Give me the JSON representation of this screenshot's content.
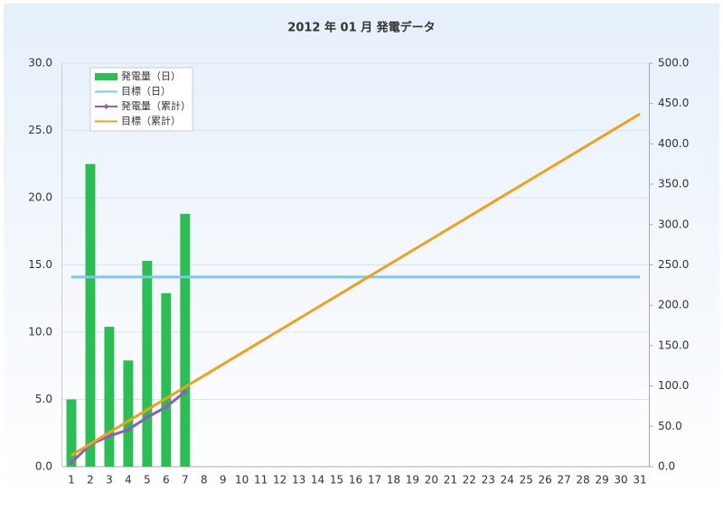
{
  "chart_data": {
    "type": "combo",
    "title": "2012 年 01 月 発電データ",
    "categories": [
      "1",
      "2",
      "3",
      "4",
      "5",
      "6",
      "7",
      "8",
      "9",
      "10",
      "11",
      "12",
      "13",
      "14",
      "15",
      "16",
      "17",
      "18",
      "19",
      "20",
      "21",
      "22",
      "23",
      "24",
      "25",
      "26",
      "27",
      "28",
      "29",
      "30",
      "31"
    ],
    "series": [
      {
        "name": "発電量（日）",
        "type": "bar",
        "color": "#2dbd55",
        "values": [
          5.0,
          22.5,
          10.4,
          7.9,
          15.3,
          12.9,
          18.8,
          null,
          null,
          null,
          null,
          null,
          null,
          null,
          null,
          null,
          null,
          null,
          null,
          null,
          null,
          null,
          null,
          null,
          null,
          null,
          null,
          null,
          null,
          null,
          null
        ]
      },
      {
        "name": "目標（日）",
        "type": "line",
        "color": "#7ec8e8",
        "values": [
          14.1,
          14.1,
          14.1,
          14.1,
          14.1,
          14.1,
          14.1,
          14.1,
          14.1,
          14.1,
          14.1,
          14.1,
          14.1,
          14.1,
          14.1,
          14.1,
          14.1,
          14.1,
          14.1,
          14.1,
          14.1,
          14.1,
          14.1,
          14.1,
          14.1,
          14.1,
          14.1,
          14.1,
          14.1,
          14.1,
          14.1
        ]
      },
      {
        "name": "発電量（累計）",
        "type": "line",
        "marker": "diamond",
        "axis": "y2",
        "color": "#8b5fbf",
        "values": [
          5.0,
          27.5,
          37.9,
          45.8,
          61.1,
          74.0,
          92.8,
          null,
          null,
          null,
          null,
          null,
          null,
          null,
          null,
          null,
          null,
          null,
          null,
          null,
          null,
          null,
          null,
          null,
          null,
          null,
          null,
          null,
          null,
          null,
          null
        ]
      },
      {
        "name": "目標（累計）",
        "type": "line",
        "axis": "y2",
        "color": "#f0a020",
        "values": [
          14.1,
          28.2,
          42.3,
          56.4,
          70.5,
          84.6,
          98.7,
          112.8,
          126.9,
          141.0,
          155.1,
          169.2,
          183.3,
          197.4,
          211.5,
          225.6,
          239.7,
          253.8,
          267.9,
          282.0,
          296.1,
          310.2,
          324.3,
          338.4,
          352.5,
          366.6,
          380.7,
          394.8,
          408.9,
          423.0,
          437.1
        ]
      }
    ],
    "ylim": [
      0,
      30
    ],
    "yticks": [
      {
        "value": 0,
        "label": "0.0"
      },
      {
        "value": 5,
        "label": "5.0"
      },
      {
        "value": 10,
        "label": "10.0"
      },
      {
        "value": 15,
        "label": "15.0"
      },
      {
        "value": 20,
        "label": "20.0"
      },
      {
        "value": 25,
        "label": "25.0"
      },
      {
        "value": 30,
        "label": "30.0"
      }
    ],
    "y2lim": [
      0,
      500
    ],
    "y2ticks": [
      {
        "value": 0,
        "label": "0.0"
      },
      {
        "value": 50,
        "label": "50.0"
      },
      {
        "value": 100,
        "label": "100.0"
      },
      {
        "value": 150,
        "label": "150.0"
      },
      {
        "value": 200,
        "label": "200.0"
      },
      {
        "value": 250,
        "label": "250.0"
      },
      {
        "value": 300,
        "label": "300.0"
      },
      {
        "value": 350,
        "label": "350.0"
      },
      {
        "value": 400,
        "label": "400.0"
      },
      {
        "value": 450,
        "label": "450.0"
      },
      {
        "value": 500,
        "label": "500.0"
      }
    ],
    "grid": true,
    "legend": "top-left"
  }
}
